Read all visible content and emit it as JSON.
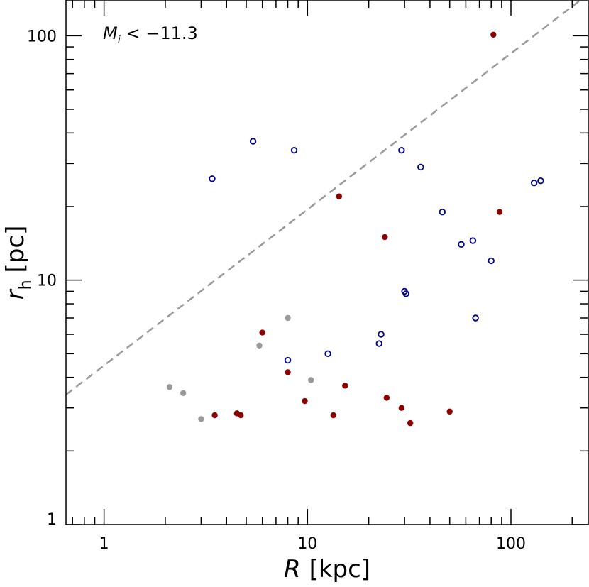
{
  "chart_data": {
    "type": "scatter",
    "xlabel": "R [kpc]",
    "ylabel": "r_h [pc]",
    "xlabel_parts": {
      "symbol": "R",
      "unit": "[kpc]"
    },
    "ylabel_parts": {
      "symbol": "r",
      "subscript": "h",
      "unit": "[pc]"
    },
    "x_scale": "log",
    "y_scale": "log",
    "xlim": [
      0.65,
      240
    ],
    "ylim": [
      1,
      140
    ],
    "x_ticks": [
      1,
      10,
      100
    ],
    "x_tick_labels": [
      "1",
      "10",
      "100"
    ],
    "y_ticks": [
      1,
      10,
      100
    ],
    "y_tick_labels": [
      "1",
      "10",
      "100"
    ],
    "grid": false,
    "annotation": {
      "main": "M",
      "sub": "i",
      "rest": " < −11.3"
    },
    "reference_line": {
      "style": "dashed",
      "color": "#9a9a9a",
      "points": [
        [
          0.65,
          3.4
        ],
        [
          220,
          140
        ]
      ]
    },
    "series": [
      {
        "marker": "open-circle",
        "color": "#00008b",
        "points": [
          [
            3.4,
            26
          ],
          [
            5.4,
            37
          ],
          [
            8.6,
            34
          ],
          [
            29,
            34
          ],
          [
            36,
            29
          ],
          [
            46,
            19
          ],
          [
            57,
            14
          ],
          [
            65,
            14.5
          ],
          [
            80,
            12
          ],
          [
            130,
            25
          ],
          [
            140,
            25.5
          ],
          [
            30,
            9
          ],
          [
            30.5,
            8.8
          ],
          [
            67,
            7
          ],
          [
            23,
            6
          ],
          [
            22.5,
            5.5
          ],
          [
            12.6,
            5
          ],
          [
            8,
            4.7
          ]
        ]
      },
      {
        "marker": "filled-circle",
        "color": "#8b0000",
        "points": [
          [
            82,
            101
          ],
          [
            14.3,
            22
          ],
          [
            88,
            19
          ],
          [
            24,
            15
          ],
          [
            6,
            6.1
          ],
          [
            8,
            4.2
          ],
          [
            15.3,
            3.7
          ],
          [
            24.5,
            3.3
          ],
          [
            9.7,
            3.2
          ],
          [
            29,
            3
          ],
          [
            50,
            2.9
          ],
          [
            4.5,
            2.85
          ],
          [
            4.7,
            2.8
          ],
          [
            13.4,
            2.8
          ],
          [
            3.5,
            2.8
          ],
          [
            32,
            2.6
          ]
        ]
      },
      {
        "marker": "filled-circle",
        "color": "#999999",
        "points": [
          [
            8,
            7
          ],
          [
            5.8,
            5.4
          ],
          [
            10.4,
            3.9
          ],
          [
            2.1,
            3.65
          ],
          [
            2.45,
            3.45
          ],
          [
            3,
            2.7
          ]
        ]
      }
    ]
  }
}
